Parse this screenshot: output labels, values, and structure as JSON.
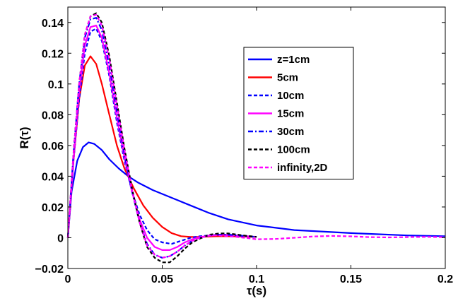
{
  "chart_data": {
    "type": "line",
    "xlabel": "τ(s)",
    "ylabel": "R(τ)",
    "xlim": [
      0,
      0.2
    ],
    "ylim": [
      -0.02,
      0.15
    ],
    "xticks": [
      0,
      0.05,
      0.1,
      0.15,
      0.2
    ],
    "xtick_labels": [
      "0",
      "0.05",
      "0.1",
      "0.15",
      "0.2"
    ],
    "yticks": [
      -0.02,
      0,
      0.02,
      0.04,
      0.06,
      0.08,
      0.1,
      0.12,
      0.14
    ],
    "ytick_labels": [
      "−0.02",
      "0",
      "0.02",
      "0.04",
      "0.06",
      "0.08",
      "0.1",
      "0.12",
      "0.14"
    ],
    "grid": false,
    "legend_position": "top-right",
    "series": [
      {
        "name": "z=1cm",
        "color": "#0000ff",
        "style": "solid",
        "x": [
          0,
          0.002,
          0.005,
          0.008,
          0.011,
          0.014,
          0.018,
          0.022,
          0.027,
          0.032,
          0.037,
          0.045,
          0.055,
          0.065,
          0.075,
          0.085,
          0.1,
          0.12,
          0.15,
          0.18,
          0.2
        ],
        "y": [
          0,
          0.03,
          0.05,
          0.059,
          0.062,
          0.061,
          0.057,
          0.051,
          0.045,
          0.04,
          0.036,
          0.031,
          0.026,
          0.021,
          0.016,
          0.012,
          0.008,
          0.005,
          0.003,
          0.0015,
          0.001
        ]
      },
      {
        "name": "5cm",
        "color": "#ff0000",
        "style": "solid",
        "x": [
          0,
          0.003,
          0.006,
          0.009,
          0.012,
          0.015,
          0.018,
          0.022,
          0.026,
          0.03,
          0.035,
          0.04,
          0.045,
          0.05,
          0.055,
          0.06,
          0.065,
          0.07,
          0.08,
          0.09,
          0.1
        ],
        "y": [
          0,
          0.05,
          0.09,
          0.112,
          0.118,
          0.113,
          0.1,
          0.08,
          0.06,
          0.045,
          0.032,
          0.021,
          0.013,
          0.007,
          0.003,
          0.001,
          0.0005,
          0.0005,
          0.001,
          0.0008,
          0.0005
        ]
      },
      {
        "name": "10cm",
        "color": "#0000ff",
        "style": "dash",
        "x": [
          0,
          0.003,
          0.006,
          0.009,
          0.012,
          0.015,
          0.018,
          0.022,
          0.026,
          0.03,
          0.034,
          0.038,
          0.042,
          0.046,
          0.05,
          0.055,
          0.06,
          0.065,
          0.07,
          0.08,
          0.09,
          0.1
        ],
        "y": [
          0,
          0.05,
          0.09,
          0.12,
          0.134,
          0.136,
          0.128,
          0.105,
          0.075,
          0.05,
          0.03,
          0.015,
          0.005,
          -0.001,
          -0.003,
          -0.004,
          -0.002,
          0.0,
          0.001,
          0.002,
          0.0015,
          0.0005
        ]
      },
      {
        "name": "15cm",
        "color": "#ff00ff",
        "style": "solid",
        "x": [
          0,
          0.003,
          0.006,
          0.009,
          0.012,
          0.015,
          0.018,
          0.022,
          0.026,
          0.03,
          0.034,
          0.038,
          0.042,
          0.046,
          0.05,
          0.054,
          0.058,
          0.062,
          0.066,
          0.07,
          0.08,
          0.09,
          0.1
        ],
        "y": [
          0,
          0.05,
          0.095,
          0.125,
          0.137,
          0.138,
          0.13,
          0.107,
          0.078,
          0.052,
          0.03,
          0.012,
          0.0,
          -0.006,
          -0.008,
          -0.008,
          -0.006,
          -0.003,
          -0.001,
          0.0005,
          0.002,
          0.0015,
          0.0005
        ]
      },
      {
        "name": "30cm",
        "color": "#0000ff",
        "style": "dashdot",
        "x": [
          0,
          0.003,
          0.006,
          0.009,
          0.012,
          0.015,
          0.018,
          0.022,
          0.026,
          0.03,
          0.034,
          0.038,
          0.042,
          0.046,
          0.05,
          0.054,
          0.058,
          0.062,
          0.066,
          0.07,
          0.075,
          0.08,
          0.085,
          0.09,
          0.095,
          0.1
        ],
        "y": [
          0,
          0.055,
          0.1,
          0.13,
          0.142,
          0.143,
          0.135,
          0.112,
          0.082,
          0.054,
          0.03,
          0.01,
          -0.004,
          -0.011,
          -0.013,
          -0.012,
          -0.009,
          -0.005,
          -0.002,
          0.0,
          0.0015,
          0.002,
          0.002,
          0.0015,
          0.001,
          0.0005
        ]
      },
      {
        "name": "100cm",
        "color": "#000000",
        "style": "dash",
        "x": [
          0,
          0.003,
          0.006,
          0.009,
          0.012,
          0.015,
          0.018,
          0.022,
          0.026,
          0.03,
          0.034,
          0.038,
          0.042,
          0.046,
          0.05,
          0.054,
          0.058,
          0.062,
          0.066,
          0.07,
          0.075,
          0.08,
          0.085,
          0.09,
          0.095,
          0.1
        ],
        "y": [
          0,
          0.055,
          0.1,
          0.132,
          0.144,
          0.146,
          0.14,
          0.118,
          0.088,
          0.058,
          0.032,
          0.01,
          -0.006,
          -0.013,
          -0.016,
          -0.016,
          -0.012,
          -0.007,
          -0.003,
          -0.0005,
          0.002,
          0.0028,
          0.0028,
          0.002,
          0.0012,
          0.0006
        ]
      },
      {
        "name": "infinity,2D",
        "color": "#ff00ff",
        "style": "dash",
        "x": [
          0,
          0.003,
          0.006,
          0.009,
          0.012,
          0.015,
          0.018,
          0.022,
          0.026,
          0.03,
          0.034,
          0.038,
          0.042,
          0.046,
          0.05,
          0.054,
          0.058,
          0.062,
          0.066,
          0.07,
          0.075,
          0.08,
          0.09,
          0.1,
          0.11,
          0.12,
          0.13,
          0.14,
          0.15,
          0.16,
          0.17,
          0.18,
          0.19,
          0.2
        ],
        "y": [
          0,
          0.055,
          0.1,
          0.132,
          0.144,
          0.145,
          0.138,
          0.116,
          0.086,
          0.057,
          0.031,
          0.01,
          -0.005,
          -0.011,
          -0.013,
          -0.012,
          -0.009,
          -0.005,
          -0.002,
          0.0,
          0.0015,
          0.0015,
          0.0005,
          -0.001,
          -0.0008,
          0.0,
          0.0008,
          0.0012,
          0.0009,
          0.0004,
          0.0002,
          0.0004,
          0.0006,
          0.0004
        ]
      }
    ]
  }
}
